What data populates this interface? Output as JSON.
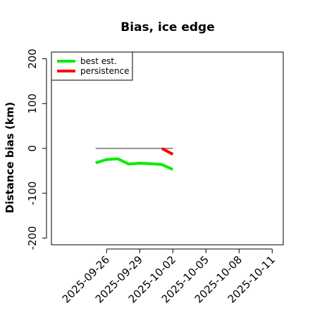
{
  "chart_data": {
    "type": "line",
    "title": "Bias, ice edge",
    "xlabel": "",
    "ylabel": "Distance bias (km)",
    "x_ticks": [
      "2025-09-26",
      "2025-09-29",
      "2025-10-02",
      "2025-10-05",
      "2025-10-08",
      "2025-10-11"
    ],
    "y_ticks": [
      "-200",
      "-100",
      "0",
      "100",
      "200"
    ],
    "xlim": [
      "2025-09-21",
      "2025-10-12"
    ],
    "ylim": [
      -215,
      215
    ],
    "grid": false,
    "legend_position": "top-left",
    "reference_line": {
      "y": 0,
      "x_start": "2025-09-25",
      "x_end": "2025-10-02",
      "color": "#555555"
    },
    "series": [
      {
        "name": "best est.",
        "color": "#00ee00",
        "x": [
          "2025-09-25",
          "2025-09-26",
          "2025-09-27",
          "2025-09-28",
          "2025-09-29",
          "2025-09-30",
          "2025-10-01",
          "2025-10-02"
        ],
        "y": [
          -32,
          -25,
          -23,
          -35,
          -33,
          -34,
          -36,
          -47
        ]
      },
      {
        "name": "persistence",
        "color": "#ff0000",
        "x": [
          "2025-10-01",
          "2025-10-02"
        ],
        "y": [
          0,
          -13
        ]
      }
    ]
  }
}
